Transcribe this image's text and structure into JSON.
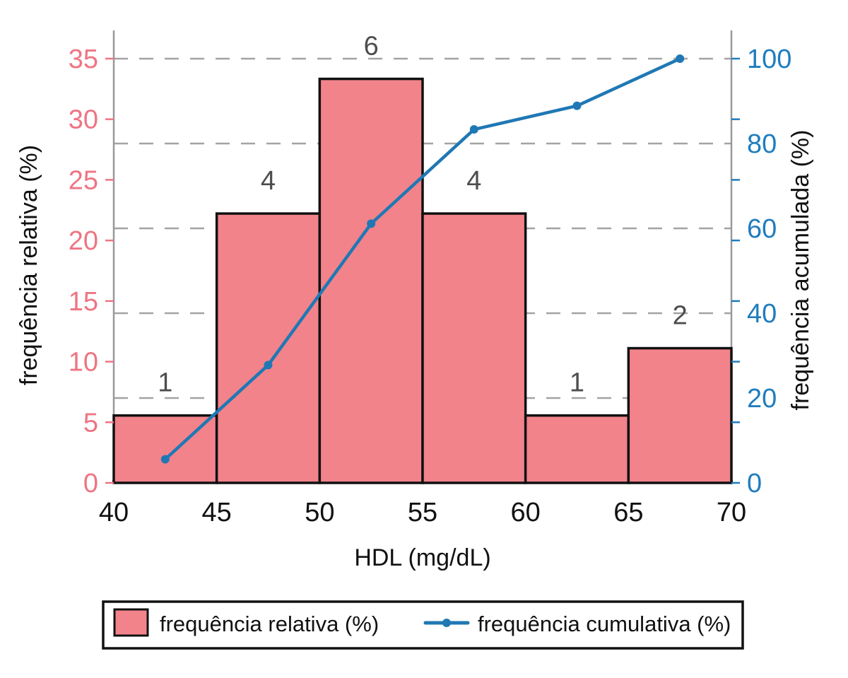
{
  "chart_data": {
    "type": "bar",
    "subtype": "histogram-with-cumulative-line",
    "title": "",
    "xlabel": "HDL (mg/dL)",
    "ylabel_left": "frequência relativa (%)",
    "ylabel_right": "frequência acumulada (%)",
    "bin_edges": [
      40,
      45,
      50,
      55,
      60,
      65,
      70
    ],
    "bin_midpoints": [
      42.5,
      47.5,
      52.5,
      57.5,
      62.5,
      67.5
    ],
    "counts": [
      1,
      4,
      6,
      4,
      1,
      2
    ],
    "series": [
      {
        "name": "frequência relativa (%)",
        "type": "bar",
        "axis": "left",
        "values": [
          5.56,
          22.22,
          33.33,
          22.22,
          5.56,
          11.11
        ],
        "color": "#f2838b",
        "edge_color": "#111111"
      },
      {
        "name": "frequência cumulativa (%)",
        "type": "line",
        "axis": "right",
        "values": [
          5.56,
          27.78,
          61.11,
          83.33,
          88.89,
          100
        ],
        "color": "#1f78b4",
        "marker": "circle"
      }
    ],
    "x_ticks": [
      40,
      45,
      50,
      55,
      60,
      65,
      70
    ],
    "left_ticks": [
      0,
      5,
      10,
      15,
      20,
      25,
      30,
      35
    ],
    "right_ticks": [
      0,
      20,
      40,
      60,
      80,
      100
    ],
    "x_range": [
      40,
      70
    ],
    "left_range": [
      0,
      37.33
    ],
    "right_range": [
      0,
      106.67
    ],
    "grid": {
      "horizontal": true,
      "at": "right_ticks",
      "style": "dashed",
      "color": "#a3a3a3"
    },
    "colors": {
      "left_axis_labels": "#ee7583",
      "right_axis_labels": "#1f7dbe",
      "count_labels": "#4d4d4d",
      "spine": "#999999",
      "x_axis_line": "#111111",
      "background": "#ffffff"
    }
  },
  "legend": {
    "entries": [
      {
        "label": "frequência relativa (%)",
        "swatch": "bar",
        "color": "#f2838b"
      },
      {
        "label": "frequência cumulativa (%)",
        "swatch": "line",
        "color": "#1f78b4"
      }
    ]
  }
}
